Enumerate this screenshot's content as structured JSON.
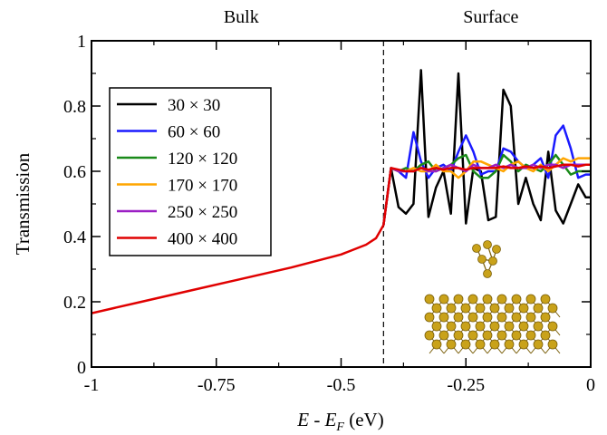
{
  "chart_data": {
    "type": "line",
    "xlabel_parts": [
      "E",
      " - ",
      "E",
      "F",
      " (eV)"
    ],
    "ylabel": "Transmission",
    "xlim": [
      -1,
      0
    ],
    "ylim": [
      0,
      1
    ],
    "xticks": [
      -1,
      -0.75,
      -0.5,
      -0.25,
      0
    ],
    "xtick_labels": [
      "-1",
      "-0.75",
      "-0.5",
      "-0.25",
      "0"
    ],
    "yticks": [
      0,
      0.2,
      0.4,
      0.6,
      0.8,
      1
    ],
    "ytick_labels": [
      "0",
      "0.2",
      "0.4",
      "0.6",
      "0.8",
      "1"
    ],
    "grid": false,
    "legend_position": "upper-left",
    "region_labels": [
      {
        "text": "Bulk",
        "x": -0.7
      },
      {
        "text": "Surface",
        "x": -0.2
      }
    ],
    "divider_x": -0.415,
    "bulk_curve": {
      "x": [
        -1,
        -0.9,
        -0.8,
        -0.7,
        -0.6,
        -0.5,
        -0.45,
        -0.43,
        -0.415
      ],
      "y": [
        0.165,
        0.2,
        0.235,
        0.27,
        0.305,
        0.345,
        0.375,
        0.395,
        0.435
      ]
    },
    "surface_x": [
      -0.415,
      -0.4,
      -0.385,
      -0.37,
      -0.355,
      -0.34,
      -0.325,
      -0.31,
      -0.295,
      -0.28,
      -0.265,
      -0.25,
      -0.235,
      -0.22,
      -0.205,
      -0.19,
      -0.175,
      -0.16,
      -0.145,
      -0.13,
      -0.115,
      -0.1,
      -0.085,
      -0.07,
      -0.055,
      -0.04,
      -0.025,
      -0.01,
      0
    ],
    "series": [
      {
        "name": "30 × 30",
        "color": "#000000",
        "values": [
          0.435,
          0.61,
          0.49,
          0.47,
          0.5,
          0.91,
          0.46,
          0.55,
          0.6,
          0.47,
          0.9,
          0.44,
          0.61,
          0.6,
          0.45,
          0.46,
          0.85,
          0.8,
          0.5,
          0.58,
          0.5,
          0.45,
          0.66,
          0.48,
          0.44,
          0.5,
          0.56,
          0.52,
          0.52
        ]
      },
      {
        "name": "60 × 60",
        "color": "#1a1aff",
        "values": [
          0.435,
          0.61,
          0.6,
          0.58,
          0.72,
          0.63,
          0.58,
          0.61,
          0.62,
          0.6,
          0.66,
          0.71,
          0.66,
          0.59,
          0.6,
          0.6,
          0.67,
          0.66,
          0.63,
          0.61,
          0.62,
          0.64,
          0.58,
          0.71,
          0.74,
          0.67,
          0.58,
          0.59,
          0.59
        ]
      },
      {
        "name": "120 × 120",
        "color": "#1a8a1a",
        "values": [
          0.435,
          0.61,
          0.6,
          0.61,
          0.6,
          0.62,
          0.63,
          0.6,
          0.61,
          0.62,
          0.64,
          0.65,
          0.6,
          0.58,
          0.58,
          0.6,
          0.65,
          0.63,
          0.6,
          0.62,
          0.61,
          0.6,
          0.62,
          0.65,
          0.62,
          0.59,
          0.6,
          0.6,
          0.6
        ]
      },
      {
        "name": "170 × 170",
        "color": "#ffa500",
        "values": [
          0.435,
          0.61,
          0.6,
          0.6,
          0.61,
          0.6,
          0.6,
          0.62,
          0.6,
          0.6,
          0.58,
          0.6,
          0.63,
          0.63,
          0.62,
          0.61,
          0.6,
          0.62,
          0.63,
          0.61,
          0.6,
          0.62,
          0.6,
          0.62,
          0.64,
          0.63,
          0.64,
          0.64,
          0.64
        ]
      },
      {
        "name": "250 × 250",
        "color": "#9b1fc4",
        "values": [
          0.435,
          0.61,
          0.6,
          0.6,
          0.6,
          0.61,
          0.6,
          0.6,
          0.61,
          0.62,
          0.61,
          0.6,
          0.62,
          0.61,
          0.61,
          0.62,
          0.61,
          0.62,
          0.61,
          0.61,
          0.62,
          0.61,
          0.62,
          0.62,
          0.61,
          0.62,
          0.62,
          0.62,
          0.62
        ]
      },
      {
        "name": "400 × 400",
        "color": "#e00000",
        "values": [
          0.435,
          0.61,
          0.605,
          0.6,
          0.6,
          0.61,
          0.605,
          0.61,
          0.605,
          0.61,
          0.61,
          0.605,
          0.61,
          0.61,
          0.61,
          0.61,
          0.615,
          0.61,
          0.61,
          0.615,
          0.61,
          0.615,
          0.61,
          0.615,
          0.62,
          0.62,
          0.615,
          0.62,
          0.62
        ]
      }
    ]
  }
}
